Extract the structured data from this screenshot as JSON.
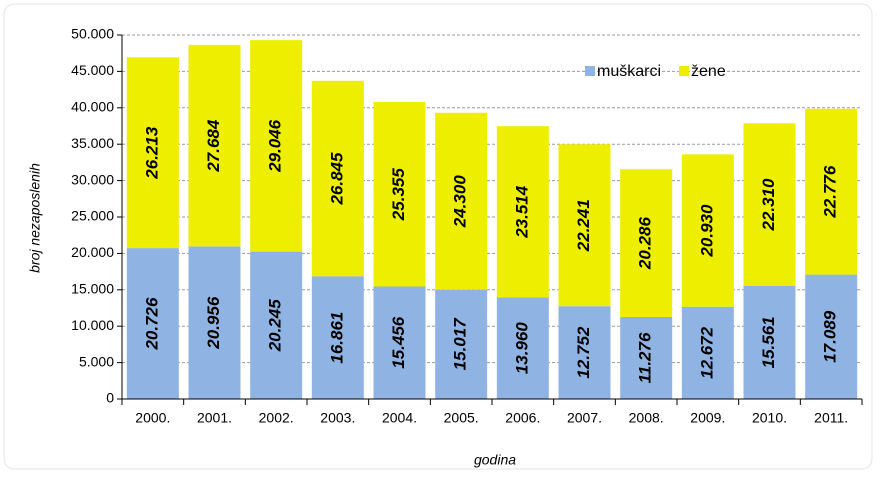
{
  "chart_data": {
    "type": "stacked_bar",
    "categories": [
      "2000.",
      "2001.",
      "2002.",
      "2003.",
      "2004.",
      "2005.",
      "2006.",
      "2007.",
      "2008.",
      "2009.",
      "2010.",
      "2011."
    ],
    "series": [
      {
        "name": "muškarci",
        "color": "#8fb4e3",
        "values": [
          20726,
          20956,
          20245,
          16861,
          15456,
          15017,
          13960,
          12752,
          11276,
          12672,
          15561,
          17089
        ],
        "value_labels": [
          "20.726",
          "20.956",
          "20.245",
          "16.861",
          "15.456",
          "15.017",
          "13.960",
          "12.752",
          "11.276",
          "12.672",
          "15.561",
          "17.089"
        ]
      },
      {
        "name": "žene",
        "color": "#eeee00",
        "values": [
          26213,
          27684,
          29046,
          26845,
          25355,
          24300,
          23514,
          22241,
          20286,
          20930,
          22310,
          22776
        ],
        "value_labels": [
          "26.213",
          "27.684",
          "29.046",
          "26.845",
          "25.355",
          "24.300",
          "23.514",
          "22.241",
          "20.286",
          "20.930",
          "22.310",
          "22.776"
        ]
      }
    ],
    "x_label": "godina",
    "y_label": "broj nezaposlenih",
    "ylim": [
      0,
      50000
    ],
    "yticks": [
      0,
      {
        "value": 5000,
        "label": "5.000"
      },
      {
        "value": 10000,
        "label": "10.000"
      },
      {
        "value": 15000,
        "label": "15.000"
      },
      {
        "value": 20000,
        "label": "20.000"
      },
      {
        "value": 25000,
        "label": "25.000"
      },
      {
        "value": 30000,
        "label": "30.000"
      },
      {
        "value": 35000,
        "label": "35.000"
      },
      {
        "value": 40000,
        "label": "40.000"
      },
      {
        "value": 45000,
        "label": "45.000"
      },
      {
        "value": 50000,
        "label": "50.000"
      }
    ],
    "grid": true,
    "legend": "top-right"
  }
}
